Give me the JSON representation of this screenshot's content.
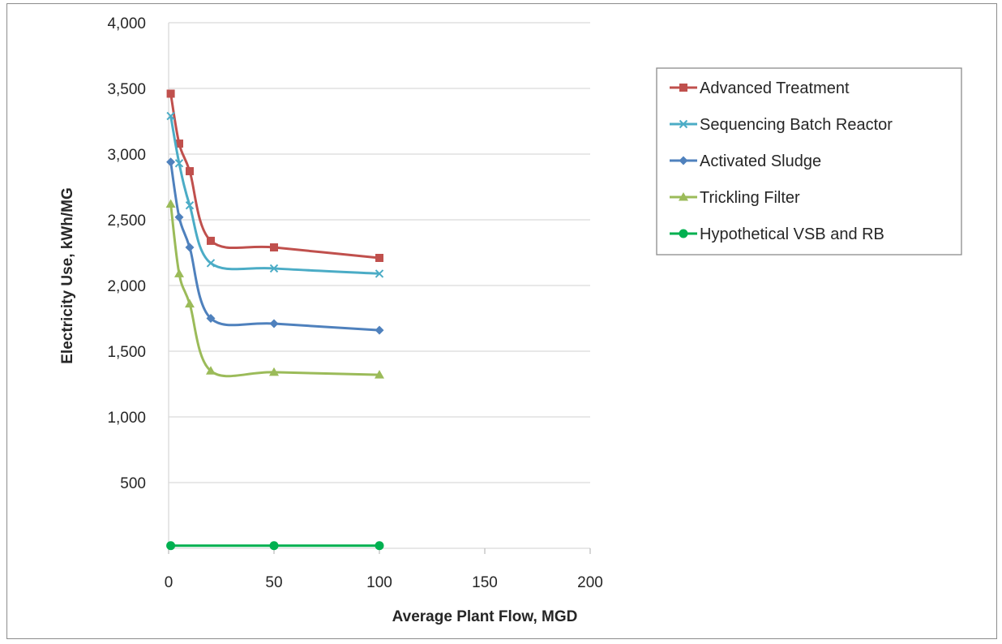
{
  "chart_data": {
    "type": "scatter",
    "title": "",
    "xlabel": "Average Plant Flow, MGD",
    "ylabel": "Electricity Use, kWh/MG",
    "xlim": [
      0,
      200
    ],
    "ylim": [
      0,
      4000
    ],
    "x_ticks": [
      0,
      50,
      100,
      150,
      200
    ],
    "y_ticks": [
      500,
      1000,
      1500,
      2000,
      2500,
      3000,
      3500,
      4000
    ],
    "x_tick_labels": [
      "0",
      "50",
      "100",
      "150",
      "200"
    ],
    "y_tick_labels": [
      "500",
      "1,000",
      "1,500",
      "2,000",
      "2,500",
      "3,000",
      "3,500",
      "4,000"
    ],
    "grid": "horizontal",
    "smoothed_lines": true,
    "legend_position": "right",
    "series": [
      {
        "name": "Advanced Treatment",
        "color": "#c0504d",
        "marker": "square",
        "x": [
          1,
          5,
          10,
          20,
          50,
          100
        ],
        "y": [
          3460,
          3080,
          2870,
          2340,
          2290,
          2210
        ]
      },
      {
        "name": "Sequencing Batch Reactor",
        "color": "#4bacc6",
        "marker": "x",
        "x": [
          1,
          5,
          10,
          20,
          50,
          100
        ],
        "y": [
          3290,
          2930,
          2610,
          2170,
          2130,
          2090
        ]
      },
      {
        "name": "Activated Sludge",
        "color": "#4f81bd",
        "marker": "diamond",
        "x": [
          1,
          5,
          10,
          20,
          50,
          100
        ],
        "y": [
          2940,
          2520,
          2290,
          1750,
          1710,
          1660
        ]
      },
      {
        "name": "Trickling Filter",
        "color": "#9bbb59",
        "marker": "triangle",
        "x": [
          1,
          5,
          10,
          20,
          50,
          100
        ],
        "y": [
          2620,
          2090,
          1860,
          1350,
          1340,
          1320
        ]
      },
      {
        "name": "Hypothetical VSB and RB",
        "color": "#00b050",
        "marker": "circle",
        "x": [
          1,
          50,
          100
        ],
        "y": [
          20,
          20,
          20
        ]
      }
    ]
  }
}
